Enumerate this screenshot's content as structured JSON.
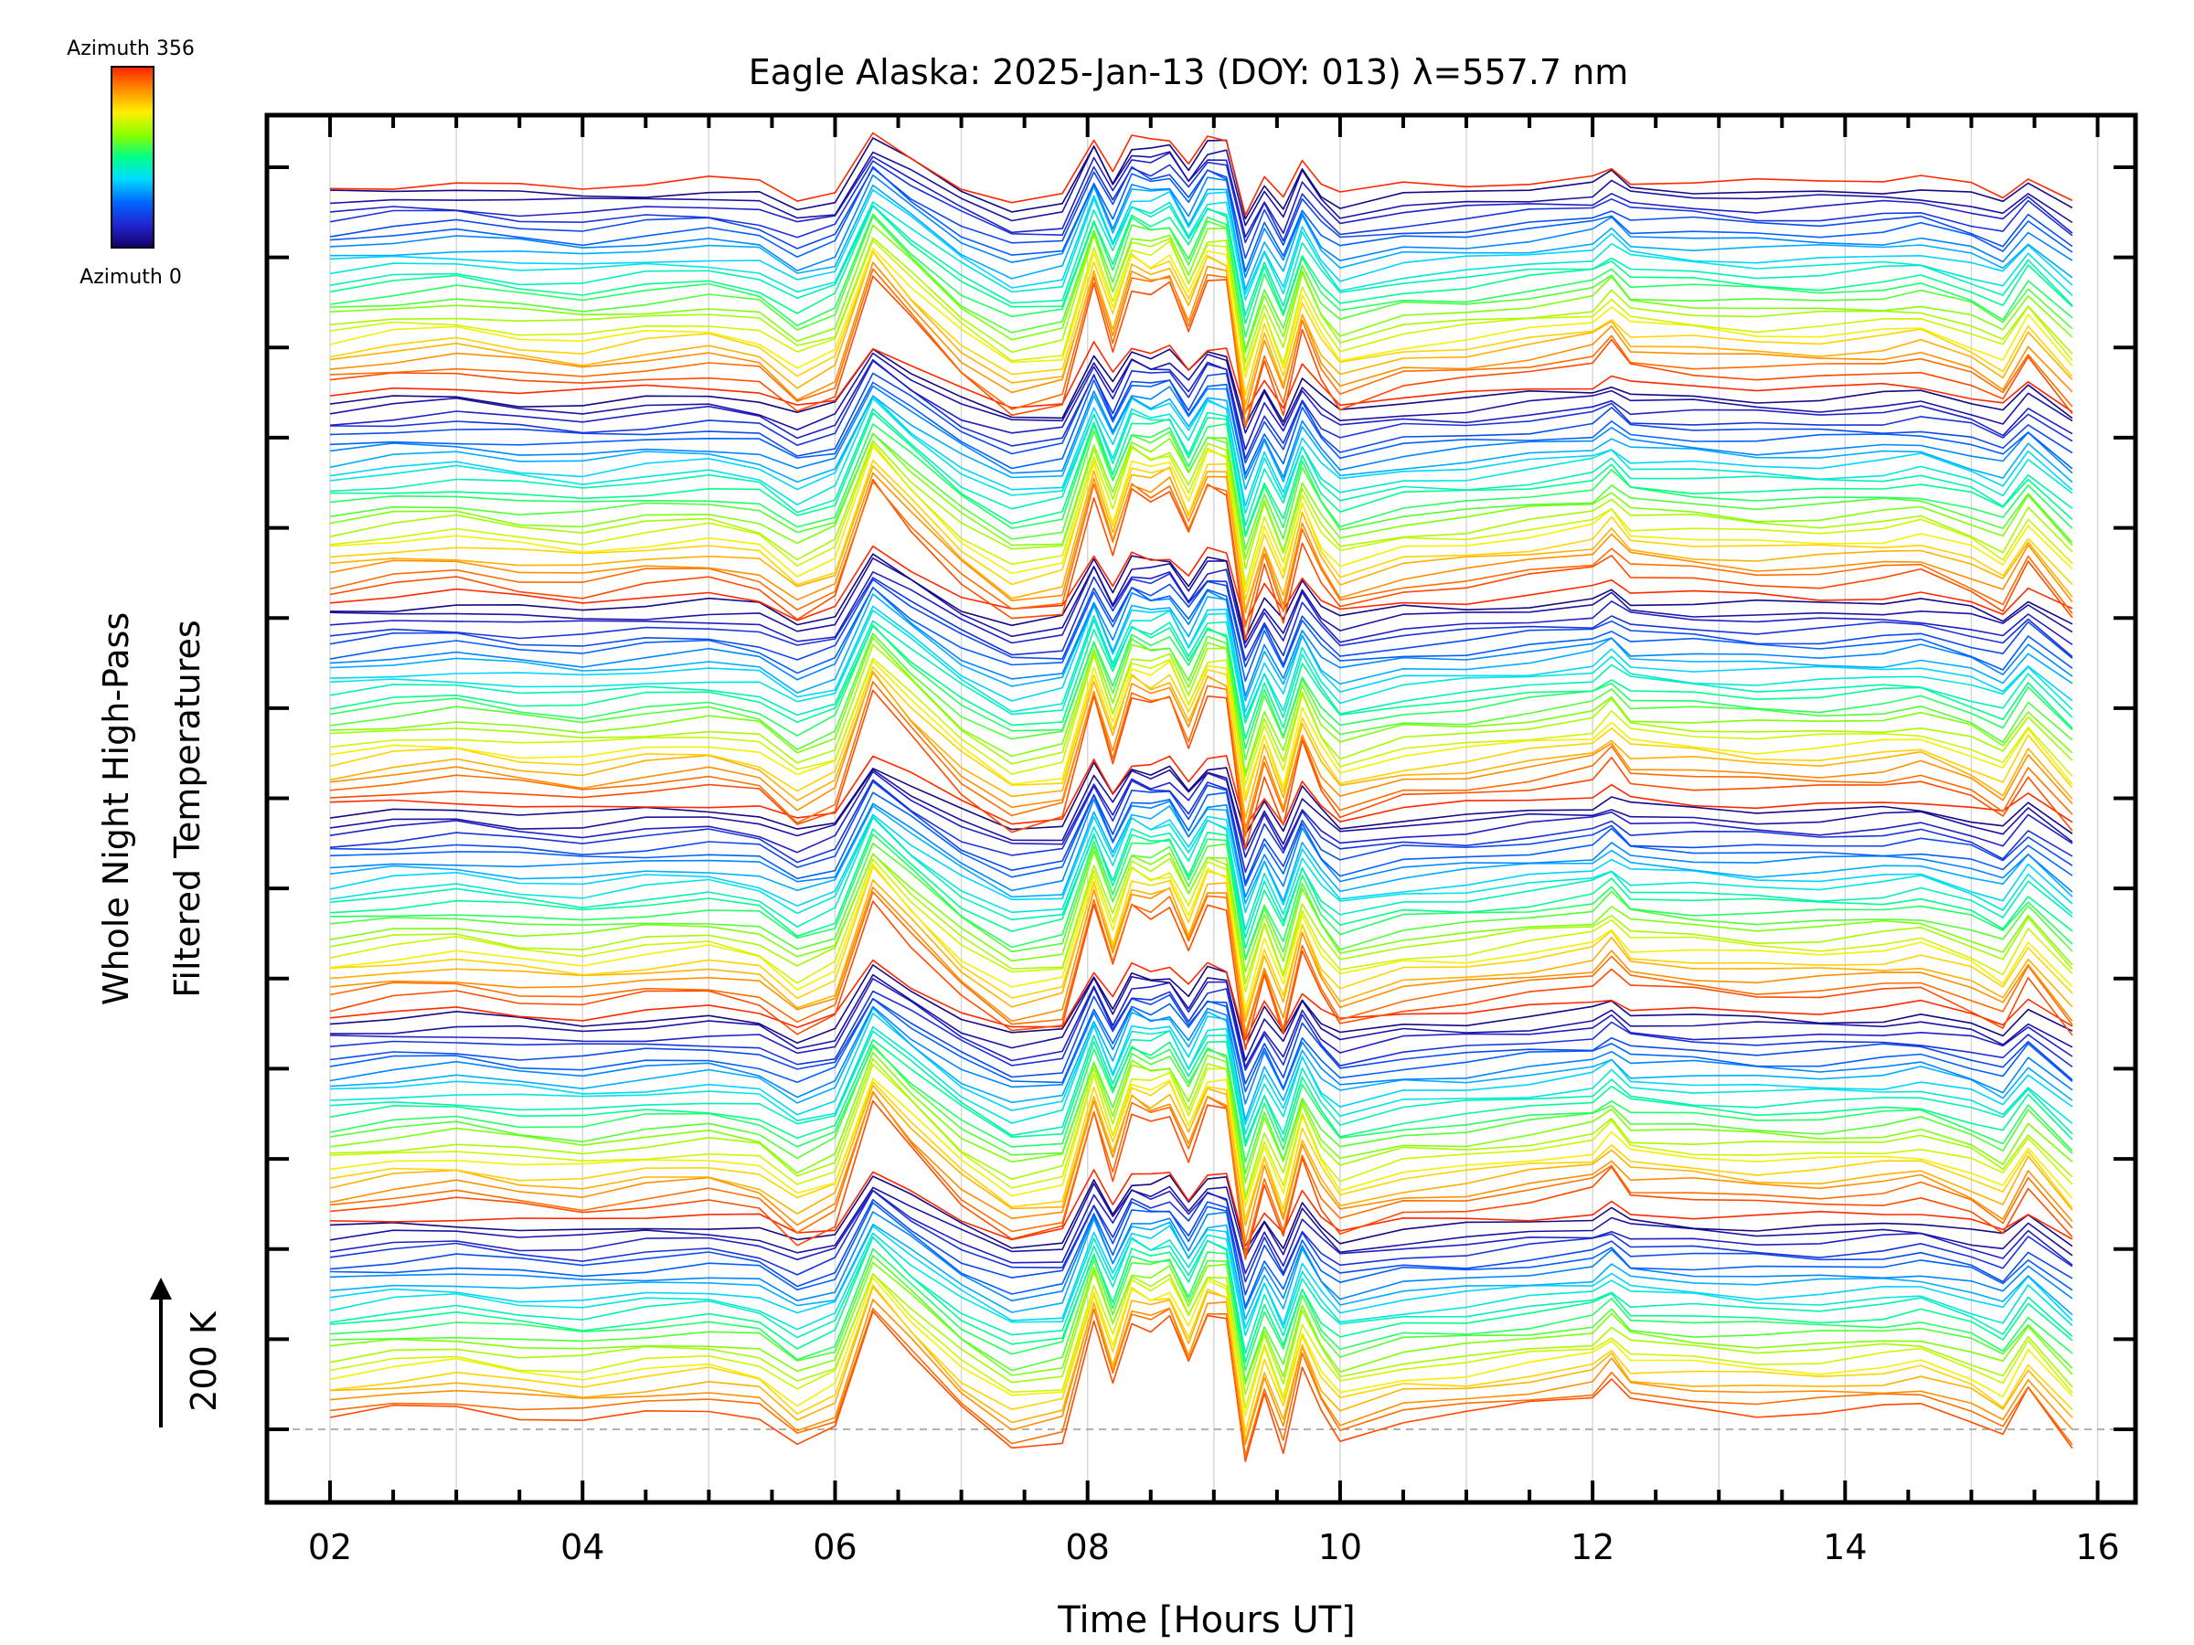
{
  "chart_data": {
    "type": "line",
    "title": "Eagle Alaska: 2025-Jan-13 (DOY: 013) λ=557.7 nm",
    "xlabel": "Time [Hours UT]",
    "ylabel_line1": "Whole Night High-Pass",
    "ylabel_line2": "Filtered Temperatures",
    "xlim": [
      1.5,
      16.3
    ],
    "x_tick_labels": [
      "02",
      "04",
      "06",
      "08",
      "10",
      "12",
      "14",
      "16"
    ],
    "x_ticks": [
      2,
      4,
      6,
      8,
      10,
      12,
      14,
      16
    ],
    "scale_bar_label": "200 K",
    "colorbar": {
      "top_label": "Azimuth 356",
      "bottom_label": "Azimuth 0",
      "colors": [
        "#ff2200",
        "#ff8800",
        "#ffee00",
        "#88ff00",
        "#00ff88",
        "#00ddff",
        "#0066ff",
        "#2222cc",
        "#110066"
      ]
    },
    "grid": true,
    "series_description": "Stacked high-pass filtered temperature traces, one per azimuth (0 to 356 degrees), offset vertically; color encodes azimuth.",
    "bands": 6,
    "traces_per_band": 24,
    "common_profile": {
      "x": [
        2.0,
        2.5,
        3.0,
        3.5,
        4.0,
        4.5,
        5.0,
        5.4,
        5.7,
        6.0,
        6.3,
        6.6,
        7.0,
        7.4,
        7.8,
        8.05,
        8.2,
        8.35,
        8.5,
        8.65,
        8.8,
        8.95,
        9.1,
        9.25,
        9.4,
        9.55,
        9.7,
        9.85,
        10.0,
        10.5,
        11.0,
        11.5,
        12.0,
        12.15,
        12.3,
        12.8,
        13.3,
        13.8,
        14.3,
        14.6,
        15.0,
        15.25,
        15.45,
        15.8
      ],
      "y": [
        0,
        10,
        15,
        5,
        0,
        10,
        15,
        5,
        -30,
        -10,
        120,
        70,
        10,
        -30,
        -20,
        110,
        40,
        110,
        100,
        110,
        60,
        115,
        110,
        -50,
        30,
        -30,
        60,
        10,
        -20,
        0,
        5,
        15,
        25,
        45,
        20,
        15,
        10,
        10,
        15,
        20,
        0,
        -20,
        30,
        -30
      ]
    },
    "y_tick_count": 15
  }
}
